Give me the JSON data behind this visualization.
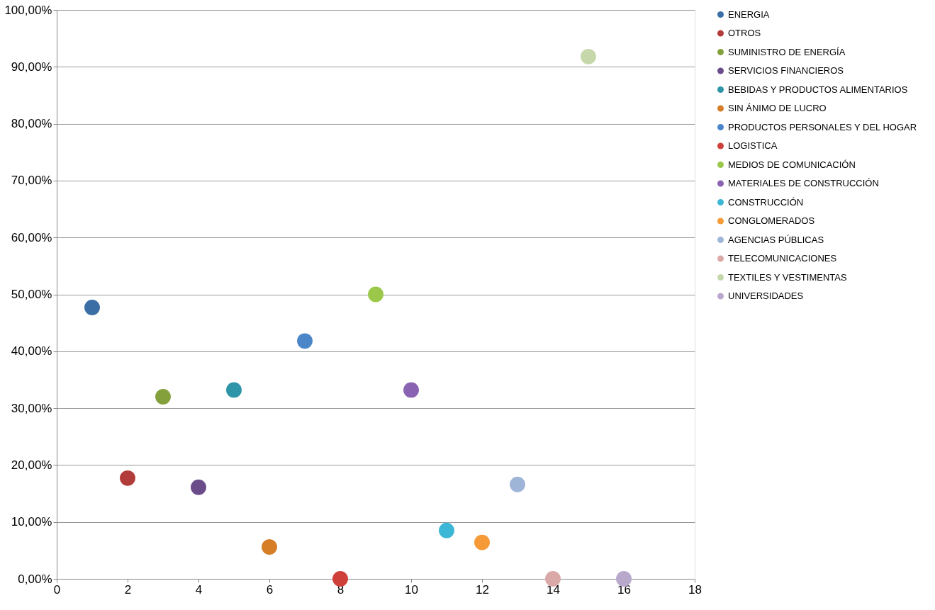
{
  "chart_data": {
    "type": "scatter",
    "xlim": [
      0,
      18
    ],
    "xticks": [
      0,
      2,
      4,
      6,
      8,
      10,
      12,
      14,
      16,
      18
    ],
    "ylim": [
      0,
      100
    ],
    "yticks": [
      {
        "value": 0,
        "label": "0,00%"
      },
      {
        "value": 10,
        "label": "10,00%"
      },
      {
        "value": 20,
        "label": "20,00%"
      },
      {
        "value": 30,
        "label": "30,00%"
      },
      {
        "value": 40,
        "label": "40,00%"
      },
      {
        "value": 50,
        "label": "50,00%"
      },
      {
        "value": 60,
        "label": "60,00%"
      },
      {
        "value": 70,
        "label": "70,00%"
      },
      {
        "value": 80,
        "label": "80,00%"
      },
      {
        "value": 90,
        "label": "90,00%"
      },
      {
        "value": 100,
        "label": "100,00%"
      }
    ],
    "grid": "y",
    "legend": "right",
    "marker": "circle",
    "series": [
      {
        "name": "ENERGIA",
        "color": "#3a6ea5",
        "x": [
          1
        ],
        "values": [
          47.7
        ]
      },
      {
        "name": "OTROS",
        "color": "#b23c3a",
        "x": [
          2
        ],
        "values": [
          17.7
        ]
      },
      {
        "name": "SUMINISTRO DE ENERGÍA",
        "color": "#84a03c",
        "x": [
          3
        ],
        "values": [
          32.0
        ]
      },
      {
        "name": "SERVICIOS FINANCIEROS",
        "color": "#6b4c8a",
        "x": [
          4
        ],
        "values": [
          16.1
        ]
      },
      {
        "name": "BEBIDAS Y PRODUCTOS ALIMENTARIOS",
        "color": "#2e95a8",
        "x": [
          5
        ],
        "values": [
          33.2
        ]
      },
      {
        "name": "SIN ÁNIMO DE LUCRO",
        "color": "#d57e27",
        "x": [
          6
        ],
        "values": [
          5.6
        ]
      },
      {
        "name": "PRODUCTOS PERSONALES Y DEL HOGAR",
        "color": "#4a86c8",
        "x": [
          7
        ],
        "values": [
          41.8
        ]
      },
      {
        "name": "LOGISTICA",
        "color": "#d0403b",
        "x": [
          8
        ],
        "values": [
          0
        ]
      },
      {
        "name": "MEDIOS DE COMUNICACIÓN",
        "color": "#9bc84a",
        "x": [
          9
        ],
        "values": [
          50.0
        ]
      },
      {
        "name": "MATERIALES DE CONSTRUCCIÓN",
        "color": "#8a64b2",
        "x": [
          10
        ],
        "values": [
          33.2
        ]
      },
      {
        "name": "CONSTRUCCIÓN",
        "color": "#3cb7d5",
        "x": [
          11
        ],
        "values": [
          8.5
        ]
      },
      {
        "name": "CONGLOMERADOS",
        "color": "#f59a36",
        "x": [
          12
        ],
        "values": [
          6.4
        ]
      },
      {
        "name": "AGENCIAS PÚBLICAS",
        "color": "#9fb5d8",
        "x": [
          13
        ],
        "values": [
          16.6
        ]
      },
      {
        "name": "TELECOMUNICACIONES",
        "color": "#dba8a8",
        "x": [
          14
        ],
        "values": [
          0
        ]
      },
      {
        "name": "TEXTILES Y VESTIMENTAS",
        "color": "#c6d8ab",
        "x": [
          15
        ],
        "values": [
          91.8
        ]
      },
      {
        "name": "UNIVERSIDADES",
        "color": "#b8a9cc",
        "x": [
          16
        ],
        "values": [
          0
        ]
      }
    ]
  }
}
